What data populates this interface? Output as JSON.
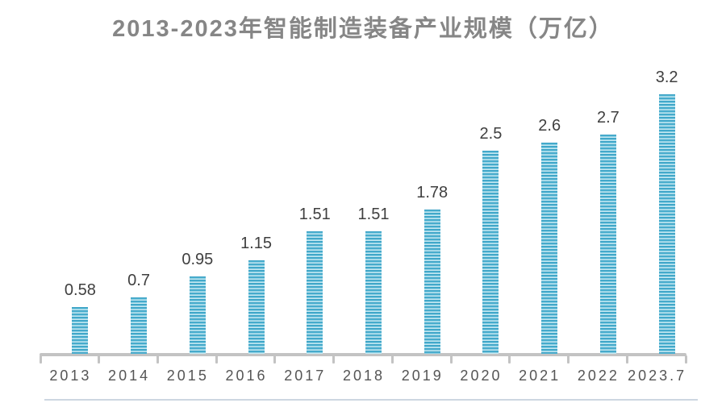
{
  "chart_data": {
    "type": "bar",
    "title": "2013-2023年智能制造装备产业规模（万亿）",
    "categories": [
      "2013",
      "2014",
      "2015",
      "2016",
      "2017",
      "2018",
      "2019",
      "2020",
      "2021",
      "2022",
      "2023.7"
    ],
    "values": [
      0.58,
      0.7,
      0.95,
      1.15,
      1.51,
      1.51,
      1.78,
      2.5,
      2.6,
      2.7,
      3.2
    ],
    "data_labels": [
      "0.58",
      "0.7",
      "0.95",
      "1.15",
      "1.51",
      "1.51",
      "1.78",
      "2.5",
      "2.6",
      "2.7",
      "3.2"
    ],
    "xlabel": "",
    "ylabel": "",
    "ylim": [
      0,
      3.4
    ],
    "grid": false,
    "legend": "none",
    "colors": {
      "bar_primary": "#4FB2D1",
      "bar_stripe_light": "#C9EAF3",
      "bar_stripe_dark": "#38A0C4",
      "title_text": "#868686",
      "value_label_text": "#3F3F3F",
      "tick_label_text": "#555555",
      "axis_line": "#C3C3C3",
      "bottom_divider": "#CDD7E1"
    }
  }
}
